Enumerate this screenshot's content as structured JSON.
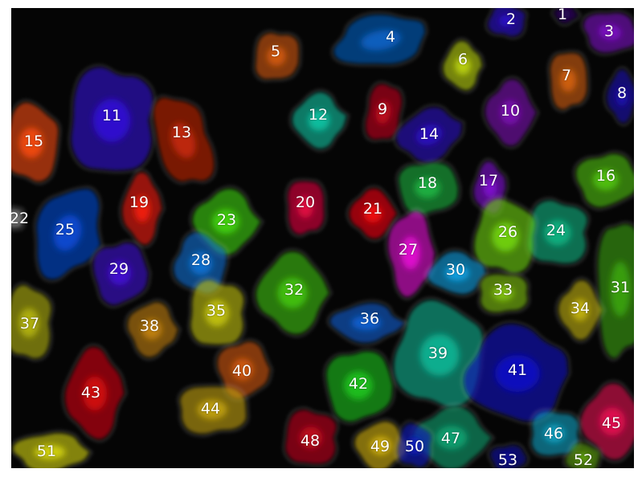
{
  "cells": [
    {
      "label": "1",
      "color": "#2a0a5e"
    },
    {
      "label": "2",
      "color": "#2a10c8"
    },
    {
      "label": "3",
      "color": "#7a10c0"
    },
    {
      "label": "4",
      "color": "#0a5fc0"
    },
    {
      "label": "5",
      "color": "#d05a10"
    },
    {
      "label": "6",
      "color": "#b8d010"
    },
    {
      "label": "7",
      "color": "#d06010"
    },
    {
      "label": "8",
      "color": "#1a10b0"
    },
    {
      "label": "9",
      "color": "#c00820"
    },
    {
      "label": "10",
      "color": "#7a10b0"
    },
    {
      "label": "11",
      "color": "#3010d0"
    },
    {
      "label": "12",
      "color": "#10c0a0"
    },
    {
      "label": "13",
      "color": "#c02808"
    },
    {
      "label": "14",
      "color": "#2a10c0"
    },
    {
      "label": "15",
      "color": "#f04a10"
    },
    {
      "label": "16",
      "color": "#50c010"
    },
    {
      "label": "17",
      "color": "#8010d0"
    },
    {
      "label": "18",
      "color": "#20b040"
    },
    {
      "label": "19",
      "color": "#f02010"
    },
    {
      "label": "20",
      "color": "#e00840"
    },
    {
      "label": "21",
      "color": "#f00a10"
    },
    {
      "label": "22",
      "color": "#888888"
    },
    {
      "label": "23",
      "color": "#40d010"
    },
    {
      "label": "24",
      "color": "#10b080"
    },
    {
      "label": "25",
      "color": "#0a4ad0"
    },
    {
      "label": "26",
      "color": "#70d010"
    },
    {
      "label": "27",
      "color": "#e010d0"
    },
    {
      "label": "28",
      "color": "#1070d0"
    },
    {
      "label": "29",
      "color": "#4010d0"
    },
    {
      "label": "30",
      "color": "#10a0e0"
    },
    {
      "label": "31",
      "color": "#3aa010"
    },
    {
      "label": "32",
      "color": "#40c010"
    },
    {
      "label": "33",
      "color": "#80c010"
    },
    {
      "label": "34",
      "color": "#c0b010"
    },
    {
      "label": "35",
      "color": "#c0c010"
    },
    {
      "label": "36",
      "color": "#1060d0"
    },
    {
      "label": "37",
      "color": "#b0b010"
    },
    {
      "label": "38",
      "color": "#c08010"
    },
    {
      "label": "39",
      "color": "#10b090"
    },
    {
      "label": "40",
      "color": "#d05a10"
    },
    {
      "label": "41",
      "color": "#1010c0"
    },
    {
      "label": "42",
      "color": "#20c020"
    },
    {
      "label": "43",
      "color": "#d00810"
    },
    {
      "label": "44",
      "color": "#c0a010"
    },
    {
      "label": "45",
      "color": "#e01050"
    },
    {
      "label": "46",
      "color": "#10a0c0"
    },
    {
      "label": "47",
      "color": "#10a070"
    },
    {
      "label": "48",
      "color": "#c00820"
    },
    {
      "label": "49",
      "color": "#d0b010"
    },
    {
      "label": "50",
      "color": "#1020c0"
    },
    {
      "label": "51",
      "color": "#d0d010"
    },
    {
      "label": "52",
      "color": "#60a010"
    },
    {
      "label": "53",
      "color": "#1010a0"
    }
  ]
}
